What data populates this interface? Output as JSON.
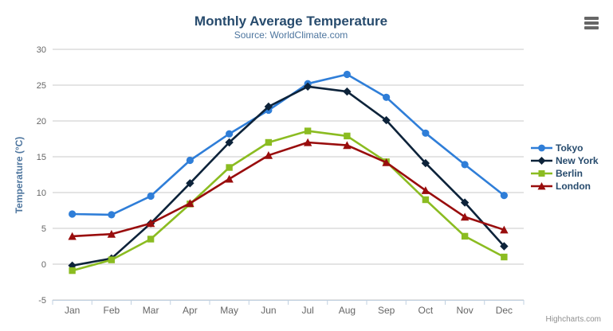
{
  "chart_data": {
    "type": "line",
    "title": "Monthly Average Temperature",
    "subtitle": "Source: WorldClimate.com",
    "xlabel": "",
    "ylabel": "Temperature (°C)",
    "ylim": [
      -5,
      30
    ],
    "yticks": [
      -5,
      0,
      5,
      10,
      15,
      20,
      25,
      30
    ],
    "grid": true,
    "legend_position": "right",
    "categories": [
      "Jan",
      "Feb",
      "Mar",
      "Apr",
      "May",
      "Jun",
      "Jul",
      "Aug",
      "Sep",
      "Oct",
      "Nov",
      "Dec"
    ],
    "series": [
      {
        "name": "Tokyo",
        "color": "#2f7ed8",
        "marker": "circle",
        "values": [
          7.0,
          6.9,
          9.5,
          14.5,
          18.2,
          21.5,
          25.2,
          26.5,
          23.3,
          18.3,
          13.9,
          9.6
        ]
      },
      {
        "name": "New York",
        "color": "#0d233a",
        "marker": "diamond",
        "values": [
          -0.2,
          0.8,
          5.7,
          11.3,
          17.0,
          22.0,
          24.8,
          24.1,
          20.1,
          14.1,
          8.6,
          2.5
        ]
      },
      {
        "name": "Berlin",
        "color": "#8bbc21",
        "marker": "square",
        "values": [
          -0.9,
          0.6,
          3.5,
          8.4,
          13.5,
          17.0,
          18.6,
          17.9,
          14.3,
          9.0,
          3.9,
          1.0
        ]
      },
      {
        "name": "London",
        "color": "#990d0d",
        "marker": "triangle",
        "values": [
          3.9,
          4.2,
          5.7,
          8.5,
          11.9,
          15.2,
          17.0,
          16.6,
          14.2,
          10.3,
          6.6,
          4.8
        ]
      }
    ]
  },
  "styles": {
    "title_color": "#274b6d",
    "subtitle_color": "#4d759e",
    "axis_title_color": "#4d759e",
    "axis_label_color": "#666666",
    "gridline_color": "#c8c8c8",
    "axis_line_color": "#c0d0e0",
    "legend_text_color": "#274b6d",
    "credits_color": "#909090"
  },
  "header": {
    "context_menu_icon": "hamburger-icon"
  },
  "credits": {
    "label": "Highcharts.com"
  }
}
